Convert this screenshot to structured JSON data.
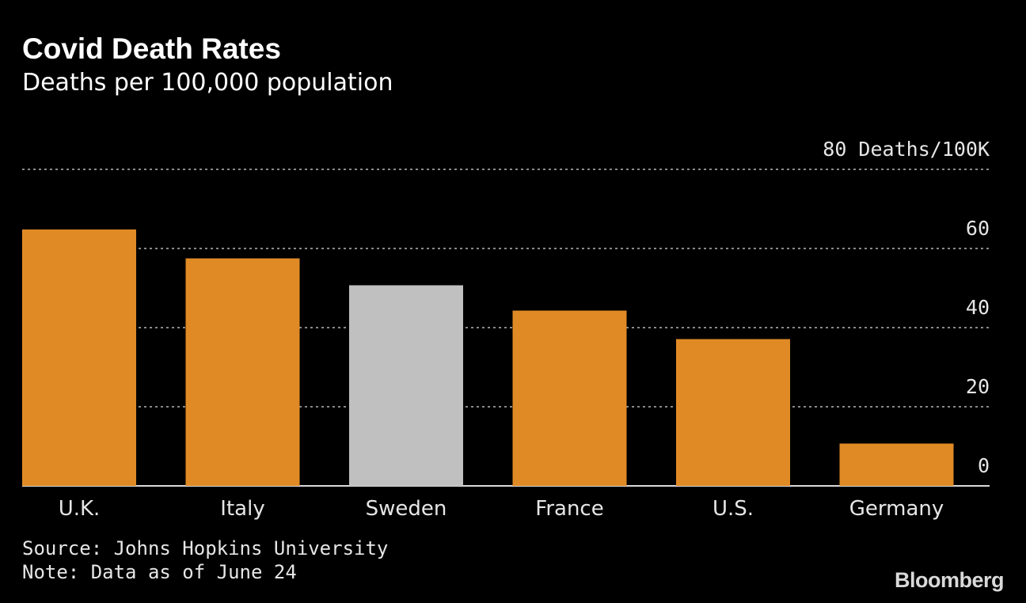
{
  "header": {
    "title": "Covid Death Rates",
    "subtitle": "Deaths per 100,000 population"
  },
  "footer": {
    "source": "Source: Johns Hopkins University",
    "note": "Note: Data as of June 24",
    "brand": "Bloomberg"
  },
  "colors": {
    "background": "#000000",
    "bar_default": "#e08a25",
    "bar_highlight": "#c0c0c0",
    "gridline": "#8a8a8a",
    "baseline": "#d9d9d9",
    "text": "#ffffff"
  },
  "chart_data": {
    "type": "bar",
    "title": "Covid Death Rates",
    "subtitle": "Deaths per 100,000 population",
    "categories": [
      "U.K.",
      "Italy",
      "Sweden",
      "France",
      "U.S.",
      "Germany"
    ],
    "values": [
      64.8,
      57.5,
      50.7,
      44.3,
      37.1,
      10.7
    ],
    "highlight": [
      "Sweden"
    ],
    "ylim": [
      0,
      80
    ],
    "yticks": [
      0,
      20,
      40,
      60,
      80
    ],
    "ytick_labels": [
      "0",
      "20",
      "40",
      "60",
      "80 Deaths/100K"
    ],
    "grid": true,
    "y_axis_side": "right"
  }
}
